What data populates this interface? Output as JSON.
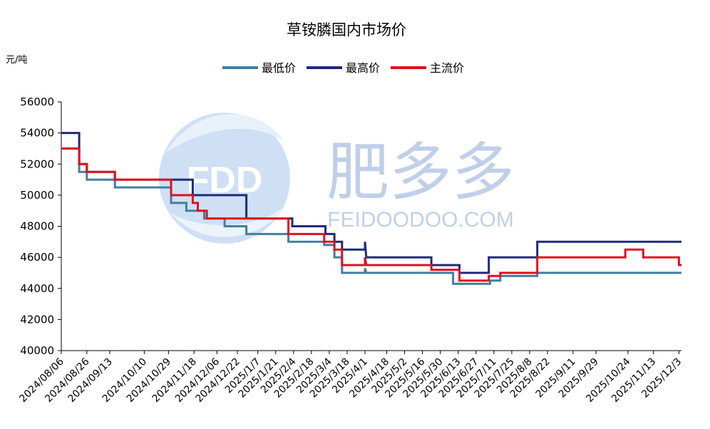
{
  "chart_data": {
    "type": "line",
    "title": "草铵膦国内市场价",
    "unit_label": "元/吨",
    "ylim": [
      40000,
      56000
    ],
    "yticks": [
      "40000",
      "42000",
      "44000",
      "46000",
      "48000",
      "50000",
      "52000",
      "54000",
      "56000"
    ],
    "xlim": [
      "2024-08-06",
      "2025-12-05"
    ],
    "x_tick_dates": [
      "2024-08-06",
      "2024-08-26",
      "2024-09-13",
      "2024-10-10",
      "2024-10-29",
      "2024-11-18",
      "2024-12-06",
      "2024-12-22",
      "2025-01-07",
      "2025-01-21",
      "2025-02-04",
      "2025-02-18",
      "2025-03-04",
      "2025-03-18",
      "2025-04-01",
      "2025-04-18",
      "2025-05-02",
      "2025-05-16",
      "2025-05-30",
      "2025-06-13",
      "2025-06-27",
      "2025-07-11",
      "2025-07-25",
      "2025-08-08",
      "2025-08-22",
      "2025-09-11",
      "2025-09-29",
      "2025-10-24",
      "2025-11-13",
      "2025-12-03"
    ],
    "x_tick_labels": [
      "2024/08/06",
      "2024/08/26",
      "2024/09/13",
      "2024/10/10",
      "2024/10/29",
      "2024/11/18",
      "2024/12/06",
      "2024/12/22",
      "2025/1/7",
      "2025/1/21",
      "2025/2/4",
      "2025/2/18",
      "2025/3/4",
      "2025/3/18",
      "2025/4/1",
      "2025/4/18",
      "2025/5/2",
      "2025/5/16",
      "2025/5/30",
      "2025/6/13",
      "2025/6/27",
      "2025/7/11",
      "2025/7/25",
      "2025/8/8",
      "2025/8/22",
      "2025/9/11",
      "2025/9/29",
      "2025/10/24",
      "2025/11/13",
      "2025/12/3"
    ],
    "legend_position": "top",
    "grid": false,
    "series": [
      {
        "name": "最低价",
        "color": "#3f7fa1",
        "points": [
          [
            "2024-08-06",
            53000
          ],
          [
            "2024-08-20",
            53000
          ],
          [
            "2024-08-20",
            51500
          ],
          [
            "2024-08-26",
            51500
          ],
          [
            "2024-08-26",
            51000
          ],
          [
            "2024-09-17",
            51000
          ],
          [
            "2024-09-17",
            50500
          ],
          [
            "2024-10-31",
            50500
          ],
          [
            "2024-10-31",
            49500
          ],
          [
            "2024-11-12",
            49500
          ],
          [
            "2024-11-12",
            49000
          ],
          [
            "2024-11-26",
            49000
          ],
          [
            "2024-11-26",
            48500
          ],
          [
            "2024-12-12",
            48500
          ],
          [
            "2024-12-12",
            48000
          ],
          [
            "2024-12-29",
            48000
          ],
          [
            "2024-12-29",
            47500
          ],
          [
            "2025-01-31",
            47500
          ],
          [
            "2025-01-31",
            47000
          ],
          [
            "2025-02-28",
            47000
          ],
          [
            "2025-02-28",
            46800
          ],
          [
            "2025-03-08",
            46800
          ],
          [
            "2025-03-08",
            46000
          ],
          [
            "2025-03-14",
            46000
          ],
          [
            "2025-03-14",
            45000
          ],
          [
            "2025-04-01",
            45000
          ],
          [
            "2025-04-01",
            45300
          ],
          [
            "2025-04-02",
            45000
          ],
          [
            "2025-06-09",
            45000
          ],
          [
            "2025-06-09",
            44300
          ],
          [
            "2025-07-08",
            44300
          ],
          [
            "2025-07-08",
            44500
          ],
          [
            "2025-07-16",
            44500
          ],
          [
            "2025-07-16",
            44800
          ],
          [
            "2025-08-14",
            44800
          ],
          [
            "2025-08-14",
            45000
          ],
          [
            "2025-12-05",
            45000
          ]
        ]
      },
      {
        "name": "最高价",
        "color": "#1f2a7c",
        "points": [
          [
            "2024-08-06",
            54000
          ],
          [
            "2024-08-20",
            54000
          ],
          [
            "2024-08-20",
            52000
          ],
          [
            "2024-08-26",
            52000
          ],
          [
            "2024-08-26",
            51500
          ],
          [
            "2024-09-17",
            51500
          ],
          [
            "2024-09-17",
            51000
          ],
          [
            "2024-11-17",
            51000
          ],
          [
            "2024-11-17",
            50000
          ],
          [
            "2024-12-29",
            50000
          ],
          [
            "2024-12-29",
            48500
          ],
          [
            "2025-02-03",
            48500
          ],
          [
            "2025-02-03",
            48000
          ],
          [
            "2025-03-01",
            48000
          ],
          [
            "2025-03-01",
            47500
          ],
          [
            "2025-03-08",
            47500
          ],
          [
            "2025-03-08",
            47000
          ],
          [
            "2025-03-14",
            47000
          ],
          [
            "2025-03-14",
            46500
          ],
          [
            "2025-04-01",
            46500
          ],
          [
            "2025-04-01",
            47000
          ],
          [
            "2025-04-02",
            46000
          ],
          [
            "2025-05-23",
            46000
          ],
          [
            "2025-05-23",
            45500
          ],
          [
            "2025-06-14",
            45500
          ],
          [
            "2025-06-14",
            45000
          ],
          [
            "2025-07-07",
            45000
          ],
          [
            "2025-07-07",
            46000
          ],
          [
            "2025-08-14",
            46000
          ],
          [
            "2025-08-14",
            47000
          ],
          [
            "2025-12-05",
            47000
          ]
        ]
      },
      {
        "name": "主流价",
        "color": "#e0101e",
        "points": [
          [
            "2024-08-06",
            53000
          ],
          [
            "2024-08-20",
            53000
          ],
          [
            "2024-08-20",
            52000
          ],
          [
            "2024-08-26",
            52000
          ],
          [
            "2024-08-26",
            51500
          ],
          [
            "2024-09-17",
            51500
          ],
          [
            "2024-09-17",
            51000
          ],
          [
            "2024-10-31",
            51000
          ],
          [
            "2024-10-31",
            50000
          ],
          [
            "2024-11-17",
            50000
          ],
          [
            "2024-11-17",
            49500
          ],
          [
            "2024-11-21",
            49500
          ],
          [
            "2024-11-21",
            49000
          ],
          [
            "2024-11-28",
            49000
          ],
          [
            "2024-11-28",
            48500
          ],
          [
            "2025-01-31",
            48500
          ],
          [
            "2025-01-31",
            47500
          ],
          [
            "2025-02-28",
            47500
          ],
          [
            "2025-02-28",
            47000
          ],
          [
            "2025-03-08",
            47000
          ],
          [
            "2025-03-08",
            46500
          ],
          [
            "2025-03-14",
            46500
          ],
          [
            "2025-03-14",
            45500
          ],
          [
            "2025-04-01",
            45500
          ],
          [
            "2025-04-01",
            46000
          ],
          [
            "2025-04-02",
            45500
          ],
          [
            "2025-05-23",
            45500
          ],
          [
            "2025-05-23",
            45200
          ],
          [
            "2025-06-14",
            45200
          ],
          [
            "2025-06-14",
            44500
          ],
          [
            "2025-07-07",
            44500
          ],
          [
            "2025-07-07",
            44800
          ],
          [
            "2025-07-16",
            44800
          ],
          [
            "2025-07-16",
            45000
          ],
          [
            "2025-08-14",
            45000
          ],
          [
            "2025-08-14",
            46000
          ],
          [
            "2025-10-22",
            46000
          ],
          [
            "2025-10-22",
            46500
          ],
          [
            "2025-11-05",
            46500
          ],
          [
            "2025-11-05",
            46000
          ],
          [
            "2025-12-03",
            46000
          ],
          [
            "2025-12-03",
            45500
          ],
          [
            "2025-12-05",
            45500
          ]
        ]
      }
    ]
  },
  "watermark": {
    "logo_text": "FDD",
    "brand_cn": "肥多多",
    "brand_url": "FEIDOODOO.COM",
    "color": "#8ea9d8"
  }
}
